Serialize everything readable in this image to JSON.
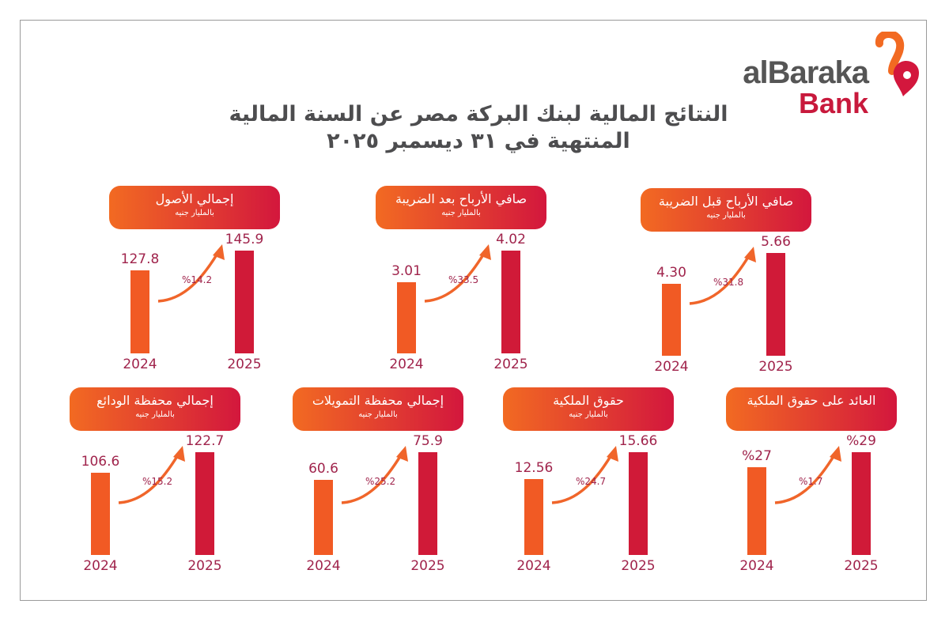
{
  "brand": {
    "name_line1": "alBaraka",
    "name_line2": "Bank",
    "colors": {
      "orange": "#f26a22",
      "red": "#d3173d",
      "text": "#a0244c"
    }
  },
  "title": {
    "line1": "النتائج المالية لبنك البركة مصر عن السنة المالية",
    "line2": "المنتهية في ٣١ ديسمبر ٢٠٢٥"
  },
  "chart_data": [
    {
      "type": "bar",
      "title": "صافي الأرباح قبل الضريبة",
      "subtitle": "بالمليار جنيه",
      "categories": [
        "2024",
        "2025"
      ],
      "labels": [
        "4.30",
        "5.66"
      ],
      "values": [
        4.3,
        5.66
      ],
      "change": "%31.8"
    },
    {
      "type": "bar",
      "title": "صافي الأرباح بعد الضريبة",
      "subtitle": "بالمليار جنيه",
      "categories": [
        "2024",
        "2025"
      ],
      "labels": [
        "3.01",
        "4.02"
      ],
      "values": [
        3.01,
        4.02
      ],
      "change": "%33.5"
    },
    {
      "type": "bar",
      "title": "إجمالي الأصول",
      "subtitle": "بالمليار جنيه",
      "categories": [
        "2024",
        "2025"
      ],
      "labels": [
        "127.8",
        "145.9"
      ],
      "values": [
        127.8,
        145.9
      ],
      "change": "%14.2"
    },
    {
      "type": "bar",
      "title": "العائد على حقوق الملكية",
      "subtitle": "",
      "categories": [
        "2024",
        "2025"
      ],
      "labels": [
        "%27",
        "%29"
      ],
      "values": [
        27,
        29
      ],
      "change": "%1.7"
    },
    {
      "type": "bar",
      "title": "حقوق الملكية",
      "subtitle": "بالمليار جنيه",
      "categories": [
        "2024",
        "2025"
      ],
      "labels": [
        "12.56",
        "15.66"
      ],
      "values": [
        12.56,
        15.66
      ],
      "change": "%24.7"
    },
    {
      "type": "bar",
      "title": "إجمالي محفظة التمويلات",
      "subtitle": "بالمليار جنيه",
      "categories": [
        "2024",
        "2025"
      ],
      "labels": [
        "60.6",
        "75.9"
      ],
      "values": [
        60.6,
        75.9
      ],
      "change": "%25.2"
    },
    {
      "type": "bar",
      "title": "إجمالي محفظة الودائع",
      "subtitle": "بالمليار جنيه",
      "categories": [
        "2024",
        "2025"
      ],
      "labels": [
        "106.6",
        "122.7"
      ],
      "values": [
        106.6,
        122.7
      ],
      "change": "%15.2"
    }
  ]
}
